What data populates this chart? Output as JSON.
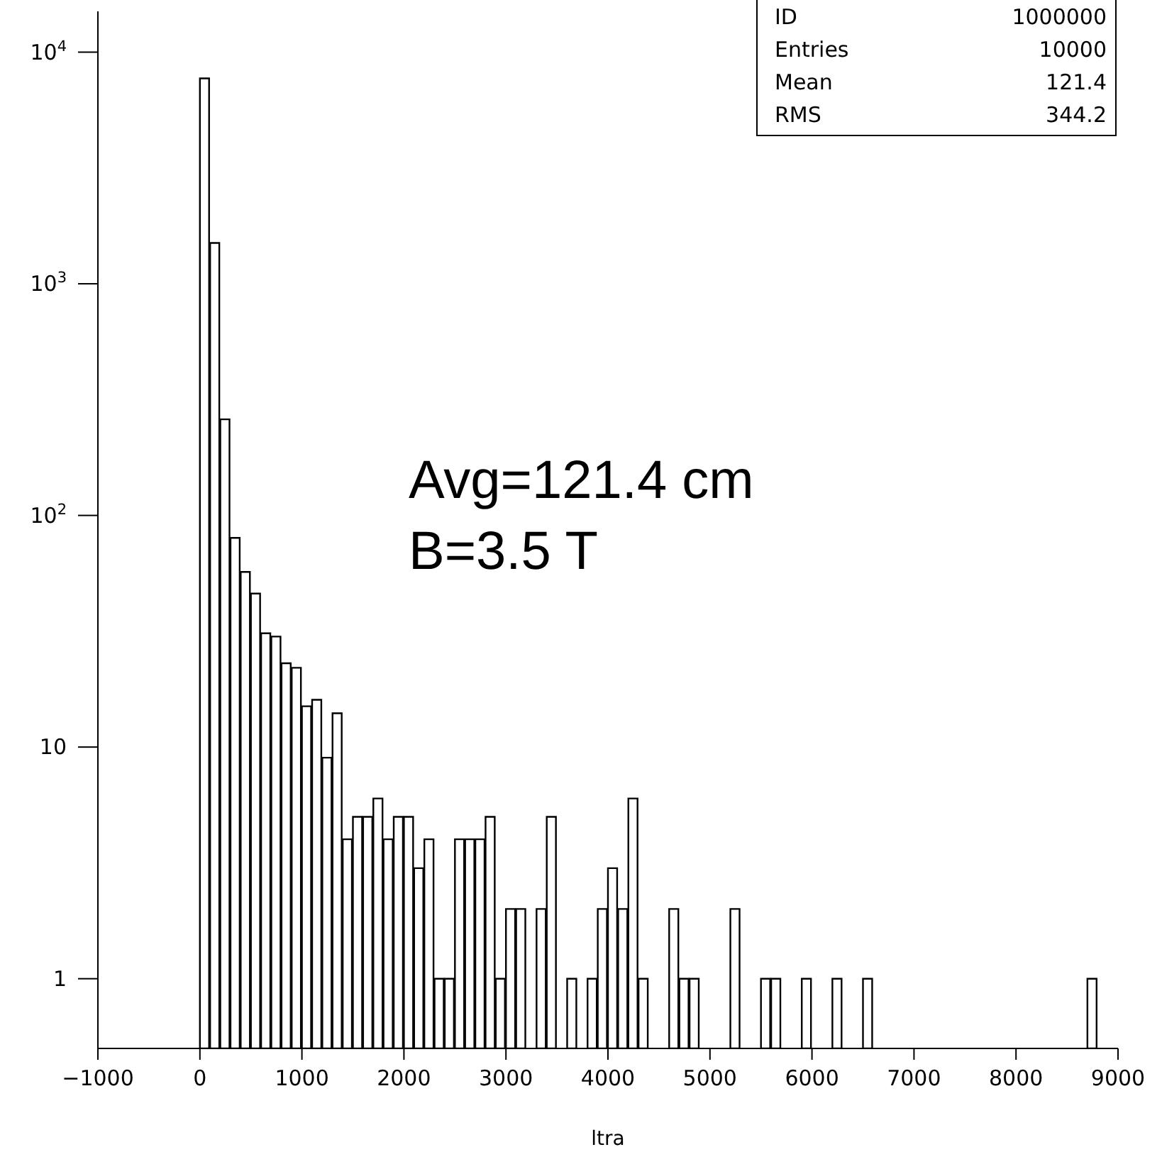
{
  "chart_data": {
    "type": "histogram",
    "xlabel": "ltra",
    "bins": [
      0,
      100,
      200,
      300,
      400,
      500,
      600,
      700,
      800,
      900,
      1000,
      1100,
      1200,
      1300,
      1400,
      1500,
      1600,
      1700,
      1800,
      1900,
      2000,
      2100,
      2200,
      2300,
      2400,
      2500,
      2600,
      2700,
      2800,
      2900,
      3000,
      3100,
      3200,
      3300,
      3400,
      3500,
      3600,
      3700,
      3800,
      3900,
      4000,
      4100,
      4200,
      4300,
      4400,
      4500,
      4600,
      4700,
      4800,
      4900,
      5000,
      5100,
      5200,
      5300,
      5400,
      5500,
      5600,
      5700,
      5800,
      5900,
      6000,
      6100,
      6200,
      6300,
      6400,
      6500,
      6600,
      6700,
      6800,
      6900,
      7000,
      7100,
      7200,
      7300,
      7400,
      7500,
      7600,
      7700,
      7800,
      7900,
      8000,
      8100,
      8200,
      8300,
      8400,
      8500,
      8600,
      8700,
      8800,
      8900,
      9000
    ],
    "values": [
      7700,
      1500,
      260,
      80,
      57,
      46,
      31,
      30,
      23,
      22,
      15,
      16,
      9,
      14,
      4,
      5,
      5,
      6,
      4,
      5,
      5,
      3,
      4,
      1,
      1,
      4,
      4,
      4,
      5,
      1,
      2,
      2,
      null,
      2,
      5,
      null,
      1,
      null,
      1,
      2,
      3,
      2,
      6,
      1,
      null,
      null,
      2,
      1,
      1,
      null,
      null,
      null,
      2,
      null,
      null,
      1,
      1,
      null,
      null,
      1,
      null,
      null,
      1,
      null,
      null,
      1,
      null,
      null,
      null,
      null,
      null,
      null,
      null,
      null,
      null,
      null,
      null,
      null,
      null,
      null,
      null,
      null,
      null,
      null,
      null,
      null,
      null,
      1,
      null,
      null
    ],
    "color": "#000000",
    "log": "y",
    "xlim": [
      -1000,
      9000
    ],
    "xticks": [
      {
        "value": -1000,
        "label": "−1000"
      },
      0,
      1000,
      2000,
      3000,
      4000,
      5000,
      6000,
      7000,
      8000,
      9000
    ],
    "ylim": [
      0.5,
      15000
    ],
    "yticks": [
      1,
      10,
      {
        "value": 100,
        "label": "10$^{2}$"
      },
      {
        "value": 1000,
        "label": "10$^{3}$"
      },
      {
        "value": 10000,
        "label": "10$^{4}$"
      }
    ],
    "grid": false,
    "legend": false,
    "annotations": [
      "ID",
      "1000000",
      "Entries",
      "10000",
      "Mean",
      "121.4",
      "RMS",
      "344.2",
      "Avg=121.4 cm",
      "B=3.5 T"
    ]
  }
}
